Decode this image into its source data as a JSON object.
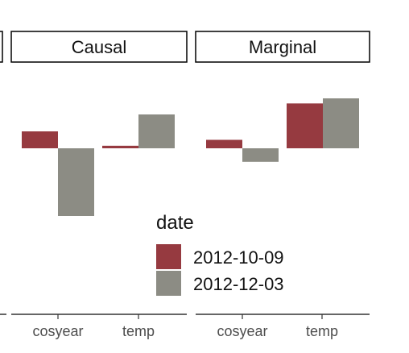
{
  "chart_data": {
    "type": "bar",
    "facets": [
      {
        "title": "Causal",
        "categories": [
          "cosyear",
          "temp"
        ],
        "series": [
          {
            "name": "2012-10-09",
            "values": [
              0.1,
              0.015
            ]
          },
          {
            "name": "2012-12-03",
            "values": [
              -0.4,
              0.2
            ]
          }
        ]
      },
      {
        "title": "Marginal",
        "categories": [
          "cosyear",
          "temp"
        ],
        "series": [
          {
            "name": "2012-10-09",
            "values": [
              0.05,
              0.265
            ]
          },
          {
            "name": "2012-12-03",
            "values": [
              -0.08,
              0.295
            ]
          }
        ]
      }
    ],
    "legend": {
      "title": "date",
      "entries": [
        "2012-10-09",
        "2012-12-03"
      ],
      "position": "bottom-right-overlay"
    },
    "colors": {
      "2012-10-09": "#963a40",
      "2012-12-03": "#8c8c84"
    },
    "grid": false,
    "xlabel": "",
    "ylabel": ""
  }
}
